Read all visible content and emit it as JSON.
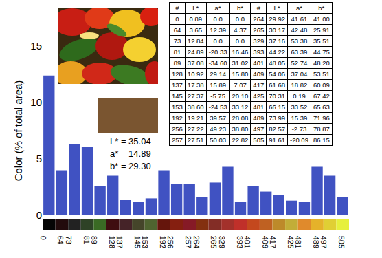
{
  "chart_data": {
    "type": "bar",
    "categories": [
      "0",
      "64",
      "73",
      "81",
      "89",
      "128",
      "137",
      "145",
      "153",
      "192",
      "256",
      "257",
      "264",
      "265",
      "329",
      "393",
      "401",
      "409",
      "417",
      "425",
      "481",
      "489",
      "497",
      "505"
    ],
    "values": [
      12.4,
      4.0,
      6.3,
      6.1,
      2.6,
      3.5,
      1.4,
      1.2,
      1.5,
      4.0,
      2.8,
      2.8,
      1.6,
      2.9,
      4.3,
      1.2,
      2.6,
      2.1,
      1.8,
      1.3,
      1.2,
      4.3,
      3.5,
      1.6
    ],
    "color": "#4052c2",
    "ylabel": "Color (% of total area)",
    "ylim": [
      0,
      15
    ],
    "yticks": [
      0,
      5,
      10,
      15
    ],
    "grid": false
  },
  "color_strip": {
    "colors": [
      "#050505",
      "#220b0c",
      "#222222",
      "#2e4226",
      "#3a6a24",
      "#3f0d10",
      "#452328",
      "#45452a",
      "#4f6430",
      "#65150c",
      "#851f10",
      "#861a26",
      "#83300f",
      "#832d26",
      "#a3312b",
      "#c0302a",
      "#c4481e",
      "#bf6122",
      "#bd8a2a",
      "#c2ad38",
      "#e08a2c",
      "#e5b22a",
      "#e0cf34",
      "#e6f03c"
    ]
  },
  "table": {
    "header": [
      "#",
      "L*",
      "a*",
      "b*",
      "#",
      "L*",
      "a*",
      "b*"
    ],
    "rows": [
      [
        "0",
        "0.89",
        "0.0",
        "0.0",
        "264",
        "29.92",
        "41.61",
        "41.00"
      ],
      [
        "64",
        "3.65",
        "12.39",
        "4.37",
        "265",
        "30.17",
        "42.48",
        "25.91"
      ],
      [
        "73",
        "12.84",
        "0.0",
        "0.0",
        "329",
        "37.16",
        "53.38",
        "35.51"
      ],
      [
        "81",
        "24.89",
        "-20.33",
        "16.46",
        "393",
        "44.22",
        "63.39",
        "44.75"
      ],
      [
        "89",
        "37.08",
        "-34.60",
        "31.02",
        "401",
        "48.05",
        "52.74",
        "48.20"
      ],
      [
        "128",
        "10.92",
        "29.14",
        "15.80",
        "409",
        "54.06",
        "37.04",
        "53.51"
      ],
      [
        "137",
        "17.38",
        "15.89",
        "7.07",
        "417",
        "61.68",
        "18.82",
        "60.09"
      ],
      [
        "145",
        "27.37",
        "-5.75",
        "20.10",
        "425",
        "70.31",
        "0.19",
        "67.42"
      ],
      [
        "153",
        "38.60",
        "-24.53",
        "33.12",
        "481",
        "66.15",
        "33.52",
        "65.63"
      ],
      [
        "192",
        "19.21",
        "39.57",
        "28.08",
        "489",
        "73.99",
        "15.39",
        "71.96"
      ],
      [
        "256",
        "27.22",
        "49.23",
        "38.80",
        "497",
        "82.57",
        "-2.73",
        "78.87"
      ],
      [
        "257",
        "27.51",
        "50.03",
        "22.82",
        "505",
        "91.61",
        "-20.09",
        "86.15"
      ]
    ]
  },
  "swatch": {
    "color": "#7a5530",
    "labels": [
      "L* = 35.04",
      "a* = 14.89",
      "b* = 29.30"
    ]
  }
}
